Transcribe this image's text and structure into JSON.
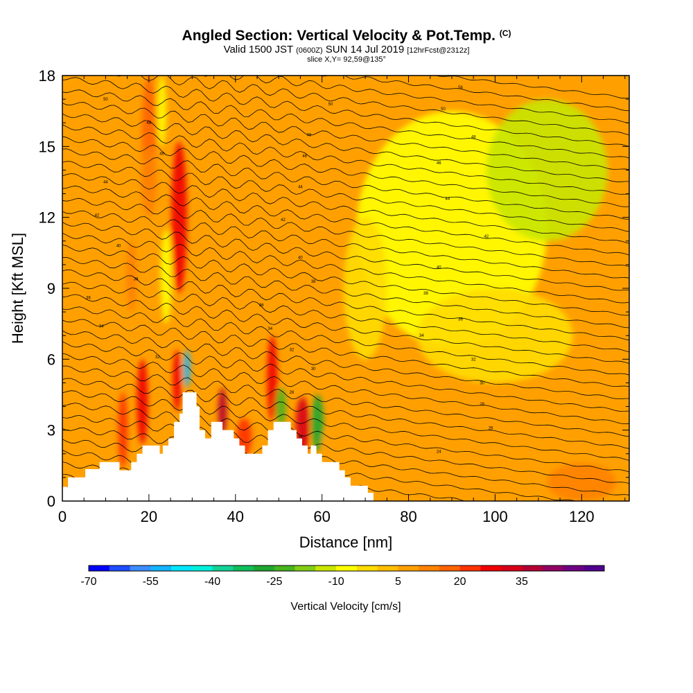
{
  "header": {
    "title": "Angled Section: Vertical Velocity & Pot.Temp.",
    "copyright": "(C)",
    "valid_pre": "Valid 1500 JST",
    "valid_z": "(0600Z)",
    "valid_date": "SUN 14 Jul 2019",
    "forecast": "[12hrFcst@2312z]",
    "slice": "slice X,Y= 92,59@135°"
  },
  "chart_data": {
    "type": "heatmap",
    "title": "Angled Section: Vertical Velocity & Pot.Temp.",
    "xlabel": "Distance [nm]",
    "ylabel": "Height [Kft MSL]",
    "xlim": [
      0,
      131
    ],
    "ylim": [
      0,
      18
    ],
    "x_ticks": [
      0,
      20,
      40,
      60,
      80,
      100,
      120
    ],
    "y_ticks": [
      0,
      3,
      6,
      9,
      12,
      15,
      18
    ],
    "background_value": 5,
    "velocity_features": [
      {
        "x": 27,
        "y": 12.0,
        "half_width": 1.8,
        "half_height": 3.2,
        "value": 28
      },
      {
        "x": 20,
        "y": 15.5,
        "half_width": 1.6,
        "half_height": 2.5,
        "value": 18
      },
      {
        "x": 20,
        "y": 13.5,
        "half_width": 1.8,
        "half_height": 1.5,
        "value": 14
      },
      {
        "x": 18.5,
        "y": 4.2,
        "half_width": 1.3,
        "half_height": 1.8,
        "value": 28
      },
      {
        "x": 14,
        "y": 3.0,
        "half_width": 1.1,
        "half_height": 1.6,
        "value": 20
      },
      {
        "x": 26.5,
        "y": 5.1,
        "half_width": 1.0,
        "half_height": 1.3,
        "value": 28
      },
      {
        "x": 28.8,
        "y": 5.6,
        "half_width": 0.8,
        "half_height": 0.8,
        "value": -55
      },
      {
        "x": 37,
        "y": 3.8,
        "half_width": 1.0,
        "half_height": 1.0,
        "value": 38
      },
      {
        "x": 42,
        "y": 2.7,
        "half_width": 1.8,
        "half_height": 0.8,
        "value": 20
      },
      {
        "x": 48.5,
        "y": 5.2,
        "half_width": 1.2,
        "half_height": 1.8,
        "value": 25
      },
      {
        "x": 50.5,
        "y": 4.0,
        "half_width": 1.2,
        "half_height": 0.8,
        "value": -25
      },
      {
        "x": 55.5,
        "y": 3.2,
        "half_width": 1.6,
        "half_height": 1.2,
        "value": 30
      },
      {
        "x": 59,
        "y": 3.3,
        "half_width": 1.4,
        "half_height": 1.2,
        "value": -30
      },
      {
        "x": 16,
        "y": 9.5,
        "half_width": 1.2,
        "half_height": 1.5,
        "value": 12
      },
      {
        "x": 49,
        "y": 12.0,
        "half_width": 1.2,
        "half_height": 3.0,
        "value": 8
      },
      {
        "x": 8,
        "y": 5.0,
        "half_width": 2.5,
        "half_height": 2.0,
        "value": 8
      },
      {
        "x": 24,
        "y": 9.5,
        "half_width": 1.3,
        "half_height": 2.0,
        "value": -10
      },
      {
        "x": 23,
        "y": 16.5,
        "half_width": 1.0,
        "half_height": 1.5,
        "value": -8
      },
      {
        "x": 90,
        "y": 11.5,
        "half_width": 22,
        "half_height": 5.0,
        "value": -8
      },
      {
        "x": 112,
        "y": 14.0,
        "half_width": 14,
        "half_height": 3.0,
        "value": -12
      },
      {
        "x": 100,
        "y": 7.0,
        "half_width": 18,
        "half_height": 2.0,
        "value": -5
      },
      {
        "x": 70,
        "y": 9.0,
        "half_width": 5.0,
        "half_height": 3.0,
        "value": -2
      },
      {
        "x": 85,
        "y": 2.5,
        "half_width": 25,
        "half_height": 1.6,
        "value": 8
      },
      {
        "x": 120,
        "y": 0.8,
        "half_width": 8,
        "half_height": 0.8,
        "value": 10
      }
    ],
    "terrain": [
      {
        "x": 0,
        "y": 0.6
      },
      {
        "x": 1.3,
        "y": 1.0
      },
      {
        "x": 5.3,
        "y": 1.35
      },
      {
        "x": 8.6,
        "y": 1.65
      },
      {
        "x": 13.2,
        "y": 1.3
      },
      {
        "x": 15.9,
        "y": 1.65
      },
      {
        "x": 17.2,
        "y": 2.0
      },
      {
        "x": 18.5,
        "y": 2.35
      },
      {
        "x": 22.5,
        "y": 2.0
      },
      {
        "x": 23.2,
        "y": 2.35
      },
      {
        "x": 24.5,
        "y": 2.65
      },
      {
        "x": 25.8,
        "y": 3.35
      },
      {
        "x": 27.1,
        "y": 3.7
      },
      {
        "x": 27.8,
        "y": 4.6
      },
      {
        "x": 31,
        "y": 4.0
      },
      {
        "x": 31.7,
        "y": 3.0
      },
      {
        "x": 33,
        "y": 2.65
      },
      {
        "x": 34.4,
        "y": 3.35
      },
      {
        "x": 37,
        "y": 3.0
      },
      {
        "x": 39.6,
        "y": 2.65
      },
      {
        "x": 40.9,
        "y": 2.35
      },
      {
        "x": 42.2,
        "y": 2.0
      },
      {
        "x": 46.2,
        "y": 2.35
      },
      {
        "x": 47.5,
        "y": 3.0
      },
      {
        "x": 48.8,
        "y": 3.35
      },
      {
        "x": 52.8,
        "y": 3.0
      },
      {
        "x": 54.1,
        "y": 2.65
      },
      {
        "x": 55.4,
        "y": 2.35
      },
      {
        "x": 56.7,
        "y": 2.0
      },
      {
        "x": 57.4,
        "y": 2.35
      },
      {
        "x": 58.7,
        "y": 2.0
      },
      {
        "x": 60,
        "y": 1.65
      },
      {
        "x": 64,
        "y": 1.3
      },
      {
        "x": 65.3,
        "y": 1.0
      },
      {
        "x": 66.6,
        "y": 0.65
      },
      {
        "x": 70.6,
        "y": 0.35
      },
      {
        "x": 71.9,
        "y": 0.0
      },
      {
        "x": 131,
        "y": 0.0
      }
    ],
    "theta_lines": {
      "values": [
        20,
        21,
        22,
        23,
        24,
        25,
        26,
        27,
        28,
        29,
        30,
        31,
        32,
        33,
        34,
        35,
        36,
        37,
        38,
        39,
        40,
        41,
        42,
        43,
        44,
        45,
        46,
        47,
        48,
        49,
        50,
        51,
        52,
        53,
        54,
        55,
        56,
        57,
        58
      ],
      "nodes_x": [
        0,
        10,
        20,
        30,
        40,
        50,
        60,
        70,
        80,
        90,
        100,
        110,
        120,
        131
      ],
      "height_at_x0": [
        0.55,
        1.06,
        1.57,
        2.08,
        2.59,
        3.1,
        3.61,
        4.12,
        4.63,
        5.14,
        5.65,
        6.16,
        6.67,
        7.18,
        7.69,
        8.2,
        8.71,
        9.22,
        9.73,
        10.24,
        10.75,
        11.26,
        11.77,
        12.28,
        12.79,
        13.3,
        13.81,
        14.32,
        14.83,
        15.34,
        15.85,
        16.36,
        16.87,
        17.38,
        17.89,
        18.4,
        18.91,
        19.42,
        19.93
      ],
      "slope_per_nm": -0.022
    },
    "contour_labels": [
      {
        "x": 10,
        "y": 17.0,
        "text": "50"
      },
      {
        "x": 20,
        "y": 16.0,
        "text": "48"
      },
      {
        "x": 23,
        "y": 14.7,
        "text": "46"
      },
      {
        "x": 10,
        "y": 13.5,
        "text": "44"
      },
      {
        "x": 8,
        "y": 12.1,
        "text": "42"
      },
      {
        "x": 13,
        "y": 10.8,
        "text": "40"
      },
      {
        "x": 17,
        "y": 9.4,
        "text": "38"
      },
      {
        "x": 6,
        "y": 8.6,
        "text": "36"
      },
      {
        "x": 9,
        "y": 7.4,
        "text": "34"
      },
      {
        "x": 22,
        "y": 6.1,
        "text": "32"
      },
      {
        "x": 62,
        "y": 16.8,
        "text": "50"
      },
      {
        "x": 57,
        "y": 15.5,
        "text": "48"
      },
      {
        "x": 56,
        "y": 14.6,
        "text": "46"
      },
      {
        "x": 55,
        "y": 13.3,
        "text": "44"
      },
      {
        "x": 51,
        "y": 11.9,
        "text": "42"
      },
      {
        "x": 55,
        "y": 10.3,
        "text": "40"
      },
      {
        "x": 58,
        "y": 9.3,
        "text": "38"
      },
      {
        "x": 46,
        "y": 8.3,
        "text": "36"
      },
      {
        "x": 48,
        "y": 7.3,
        "text": "34"
      },
      {
        "x": 53,
        "y": 6.4,
        "text": "32"
      },
      {
        "x": 58,
        "y": 5.6,
        "text": "30"
      },
      {
        "x": 53,
        "y": 4.6,
        "text": "28"
      },
      {
        "x": 55,
        "y": 2.7,
        "text": "26"
      },
      {
        "x": 92,
        "y": 17.5,
        "text": "56"
      },
      {
        "x": 88,
        "y": 16.6,
        "text": "50"
      },
      {
        "x": 95,
        "y": 15.4,
        "text": "48"
      },
      {
        "x": 87,
        "y": 14.3,
        "text": "46"
      },
      {
        "x": 89,
        "y": 12.8,
        "text": "44"
      },
      {
        "x": 98,
        "y": 11.2,
        "text": "42"
      },
      {
        "x": 87,
        "y": 9.9,
        "text": "40"
      },
      {
        "x": 84,
        "y": 8.8,
        "text": "38"
      },
      {
        "x": 92,
        "y": 7.7,
        "text": "36"
      },
      {
        "x": 83,
        "y": 7.0,
        "text": "34"
      },
      {
        "x": 95,
        "y": 6.0,
        "text": "32"
      },
      {
        "x": 97,
        "y": 5.0,
        "text": "30"
      },
      {
        "x": 97,
        "y": 4.1,
        "text": "28"
      },
      {
        "x": 99,
        "y": 3.1,
        "text": "26"
      },
      {
        "x": 87,
        "y": 2.1,
        "text": "24"
      }
    ],
    "colorbar": {
      "label": "Vertical Velocity [cm/s]",
      "tick_labels": [
        "-70",
        "-55",
        "-40",
        "-25",
        "-10",
        "5",
        "20",
        "35"
      ],
      "min": -70,
      "step": 5,
      "colors": [
        "#0000ff",
        "#1e4cff",
        "#3c8cff",
        "#14b4ff",
        "#00e6ff",
        "#00f0dc",
        "#14d296",
        "#0fbe5a",
        "#1ea532",
        "#46b41e",
        "#82cd14",
        "#c8e600",
        "#ffff00",
        "#ffdc00",
        "#ffbe00",
        "#ffa000",
        "#ff8200",
        "#ff6400",
        "#ff3200",
        "#f00000",
        "#d70019",
        "#b40032",
        "#910064",
        "#6e0082",
        "#50008c"
      ]
    }
  }
}
